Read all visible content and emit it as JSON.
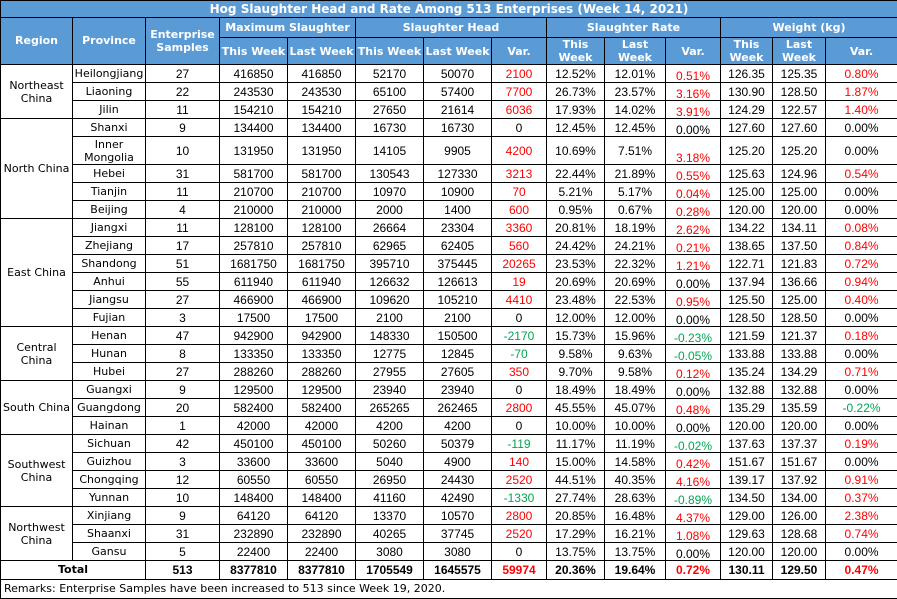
{
  "title": "Hog Slaughter Head and Rate Among 513 Enterprises (Week 14, 2021)",
  "headers": {
    "region": "Region",
    "province": "Province",
    "samples": "Enterprise Samples",
    "max_slaughter": "Maximum Slaughter",
    "slaughter_head": "Slaughter Head",
    "slaughter_rate": "Slaughter Rate",
    "weight": "Weight (kg)",
    "this_week": "This Week",
    "last_week": "Last Week",
    "var": "Var."
  },
  "colors": {
    "header_bg": "#5b9bd5",
    "positive": "#ff0000",
    "negative": "#00a651"
  },
  "regions": [
    {
      "name": "Northeast China",
      "rows": [
        [
          "Heilongjiang",
          "27",
          "416850",
          "416850",
          "52170",
          "50070",
          "2100",
          "12.52%",
          "12.01%",
          "0.51%",
          "126.35",
          "125.35",
          "0.80%"
        ],
        [
          "Liaoning",
          "22",
          "243530",
          "243530",
          "65100",
          "57400",
          "7700",
          "26.73%",
          "23.57%",
          "3.16%",
          "130.90",
          "128.50",
          "1.87%"
        ],
        [
          "Jilin",
          "11",
          "154210",
          "154210",
          "27650",
          "21614",
          "6036",
          "17.93%",
          "14.02%",
          "3.91%",
          "124.29",
          "122.57",
          "1.40%"
        ]
      ]
    },
    {
      "name": "North China",
      "rows": [
        [
          "Shanxi",
          "9",
          "134400",
          "134400",
          "16730",
          "16730",
          "0",
          "12.45%",
          "12.45%",
          "0.00%",
          "127.60",
          "127.60",
          "0.00%"
        ],
        [
          "Inner Mongolia",
          "10",
          "131950",
          "131950",
          "14105",
          "9905",
          "4200",
          "10.69%",
          "7.51%",
          "3.18%",
          "125.20",
          "125.20",
          "0.00%"
        ],
        [
          "Hebei",
          "31",
          "581700",
          "581700",
          "130543",
          "127330",
          "3213",
          "22.44%",
          "21.89%",
          "0.55%",
          "125.63",
          "124.96",
          "0.54%"
        ],
        [
          "Tianjin",
          "11",
          "210700",
          "210700",
          "10970",
          "10900",
          "70",
          "5.21%",
          "5.17%",
          "0.04%",
          "125.00",
          "125.00",
          "0.00%"
        ],
        [
          "Beijing",
          "4",
          "210000",
          "210000",
          "2000",
          "1400",
          "600",
          "0.95%",
          "0.67%",
          "0.28%",
          "120.00",
          "120.00",
          "0.00%"
        ]
      ]
    },
    {
      "name": "East China",
      "rows": [
        [
          "Jiangxi",
          "11",
          "128100",
          "128100",
          "26664",
          "23304",
          "3360",
          "20.81%",
          "18.19%",
          "2.62%",
          "134.22",
          "134.11",
          "0.08%"
        ],
        [
          "Zhejiang",
          "17",
          "257810",
          "257810",
          "62965",
          "62405",
          "560",
          "24.42%",
          "24.21%",
          "0.21%",
          "138.65",
          "137.50",
          "0.84%"
        ],
        [
          "Shandong",
          "51",
          "1681750",
          "1681750",
          "395710",
          "375445",
          "20265",
          "23.53%",
          "22.32%",
          "1.21%",
          "122.71",
          "121.83",
          "0.72%"
        ],
        [
          "Anhui",
          "55",
          "611940",
          "611940",
          "126632",
          "126613",
          "19",
          "20.69%",
          "20.69%",
          "0.00%",
          "137.94",
          "136.66",
          "0.94%"
        ],
        [
          "Jiangsu",
          "27",
          "466900",
          "466900",
          "109620",
          "105210",
          "4410",
          "23.48%",
          "22.53%",
          "0.95%",
          "125.50",
          "125.00",
          "0.40%"
        ],
        [
          "Fujian",
          "3",
          "17500",
          "17500",
          "2100",
          "2100",
          "0",
          "12.00%",
          "12.00%",
          "0.00%",
          "128.50",
          "128.50",
          "0.00%"
        ]
      ]
    },
    {
      "name": "Central China",
      "rows": [
        [
          "Henan",
          "47",
          "942900",
          "942900",
          "148330",
          "150500",
          "-2170",
          "15.73%",
          "15.96%",
          "-0.23%",
          "121.59",
          "121.37",
          "0.18%"
        ],
        [
          "Hunan",
          "8",
          "133350",
          "133350",
          "12775",
          "12845",
          "-70",
          "9.58%",
          "9.63%",
          "-0.05%",
          "133.88",
          "133.88",
          "0.00%"
        ],
        [
          "Hubei",
          "27",
          "288260",
          "288260",
          "27955",
          "27605",
          "350",
          "9.70%",
          "9.58%",
          "0.12%",
          "135.24",
          "134.29",
          "0.71%"
        ]
      ]
    },
    {
      "name": "South China",
      "rows": [
        [
          "Guangxi",
          "9",
          "129500",
          "129500",
          "23940",
          "23940",
          "0",
          "18.49%",
          "18.49%",
          "0.00%",
          "132.88",
          "132.88",
          "0.00%"
        ],
        [
          "Guangdong",
          "20",
          "582400",
          "582400",
          "265265",
          "262465",
          "2800",
          "45.55%",
          "45.07%",
          "0.48%",
          "135.29",
          "135.59",
          "-0.22%"
        ],
        [
          "Hainan",
          "1",
          "42000",
          "42000",
          "4200",
          "4200",
          "0",
          "10.00%",
          "10.00%",
          "0.00%",
          "120.00",
          "120.00",
          "0.00%"
        ]
      ]
    },
    {
      "name": "Southwest China",
      "rows": [
        [
          "Sichuan",
          "42",
          "450100",
          "450100",
          "50260",
          "50379",
          "-119",
          "11.17%",
          "11.19%",
          "-0.02%",
          "137.63",
          "137.37",
          "0.19%"
        ],
        [
          "Guizhou",
          "3",
          "33600",
          "33600",
          "5040",
          "4900",
          "140",
          "15.00%",
          "14.58%",
          "0.42%",
          "151.67",
          "151.67",
          "0.00%"
        ],
        [
          "Chongqing",
          "12",
          "60550",
          "60550",
          "26950",
          "24430",
          "2520",
          "44.51%",
          "40.35%",
          "4.16%",
          "139.17",
          "137.92",
          "0.91%"
        ],
        [
          "Yunnan",
          "10",
          "148400",
          "148400",
          "41160",
          "42490",
          "-1330",
          "27.74%",
          "28.63%",
          "-0.89%",
          "134.50",
          "134.00",
          "0.37%"
        ]
      ]
    },
    {
      "name": "Northwest China",
      "rows": [
        [
          "Xinjiang",
          "9",
          "64120",
          "64120",
          "13370",
          "10570",
          "2800",
          "20.85%",
          "16.48%",
          "4.37%",
          "129.00",
          "126.00",
          "2.38%"
        ],
        [
          "Shaanxi",
          "31",
          "232890",
          "232890",
          "40265",
          "37745",
          "2520",
          "17.29%",
          "16.21%",
          "1.08%",
          "129.63",
          "128.68",
          "0.74%"
        ],
        [
          "Gansu",
          "5",
          "22400",
          "22400",
          "3080",
          "3080",
          "0",
          "13.75%",
          "13.75%",
          "0.00%",
          "120.00",
          "120.00",
          "0.00%"
        ]
      ]
    }
  ],
  "total": {
    "label": "Total",
    "values": [
      "513",
      "8377810",
      "8377810",
      "1705549",
      "1645575",
      "59974",
      "20.36%",
      "19.64%",
      "0.72%",
      "130.11",
      "129.50",
      "0.47%"
    ]
  },
  "remarks": "Remarks: Enterprise Samples have been increased to 513 since Week 19, 2020."
}
